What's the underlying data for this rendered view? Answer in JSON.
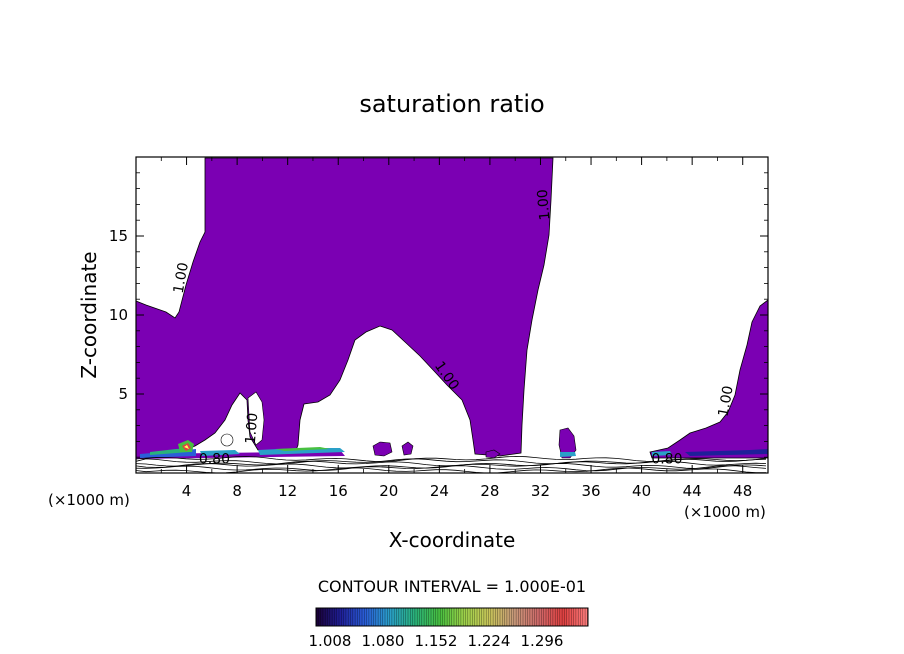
{
  "chart_data": {
    "type": "heatmap",
    "title": "saturation ratio",
    "xlabel": "X-coordinate",
    "ylabel": "Z-coordinate",
    "x_unit_left": "(×1000 m)",
    "x_unit_right": "(×1000 m)",
    "xlim": [
      0,
      50
    ],
    "ylim": [
      0,
      20
    ],
    "xticks": [
      4,
      8,
      12,
      16,
      20,
      24,
      28,
      32,
      36,
      40,
      44,
      48
    ],
    "yticks": [
      5,
      10,
      15
    ],
    "contour_interval_text": "CONTOUR INTERVAL = 1.000E-01",
    "contour_labels": [
      {
        "text": "1.00",
        "x": 3.9,
        "z": 12.3,
        "angle": -80
      },
      {
        "text": "1.00",
        "x": 32.6,
        "z": 17.0,
        "angle": -95
      },
      {
        "text": "1.00",
        "x": 24.3,
        "z": 6.0,
        "angle": 55
      },
      {
        "text": "1.00",
        "x": 47.0,
        "z": 4.5,
        "angle": -80
      },
      {
        "text": "1.00",
        "x": 9.5,
        "z": 2.8,
        "angle": -85
      },
      {
        "text": "0.80",
        "x": 6.2,
        "z": 0.6,
        "angle": 0
      },
      {
        "text": "0.80",
        "x": 42.0,
        "z": 0.6,
        "angle": 0
      }
    ],
    "colorbar": {
      "tick_labels": [
        "1.008",
        "1.080",
        "1.152",
        "1.224",
        "1.296"
      ],
      "colors": [
        "#1a0033",
        "#1f1f99",
        "#2a5fd8",
        "#2aa0c8",
        "#2ab27a",
        "#48c040",
        "#9ed24a",
        "#c9c65a",
        "#c89a7a",
        "#d06a6a",
        "#e04040",
        "#ff8080"
      ]
    },
    "colors": {
      "saturated": "#7b00b3",
      "contour": "#000000",
      "frame": "#000000"
    }
  }
}
